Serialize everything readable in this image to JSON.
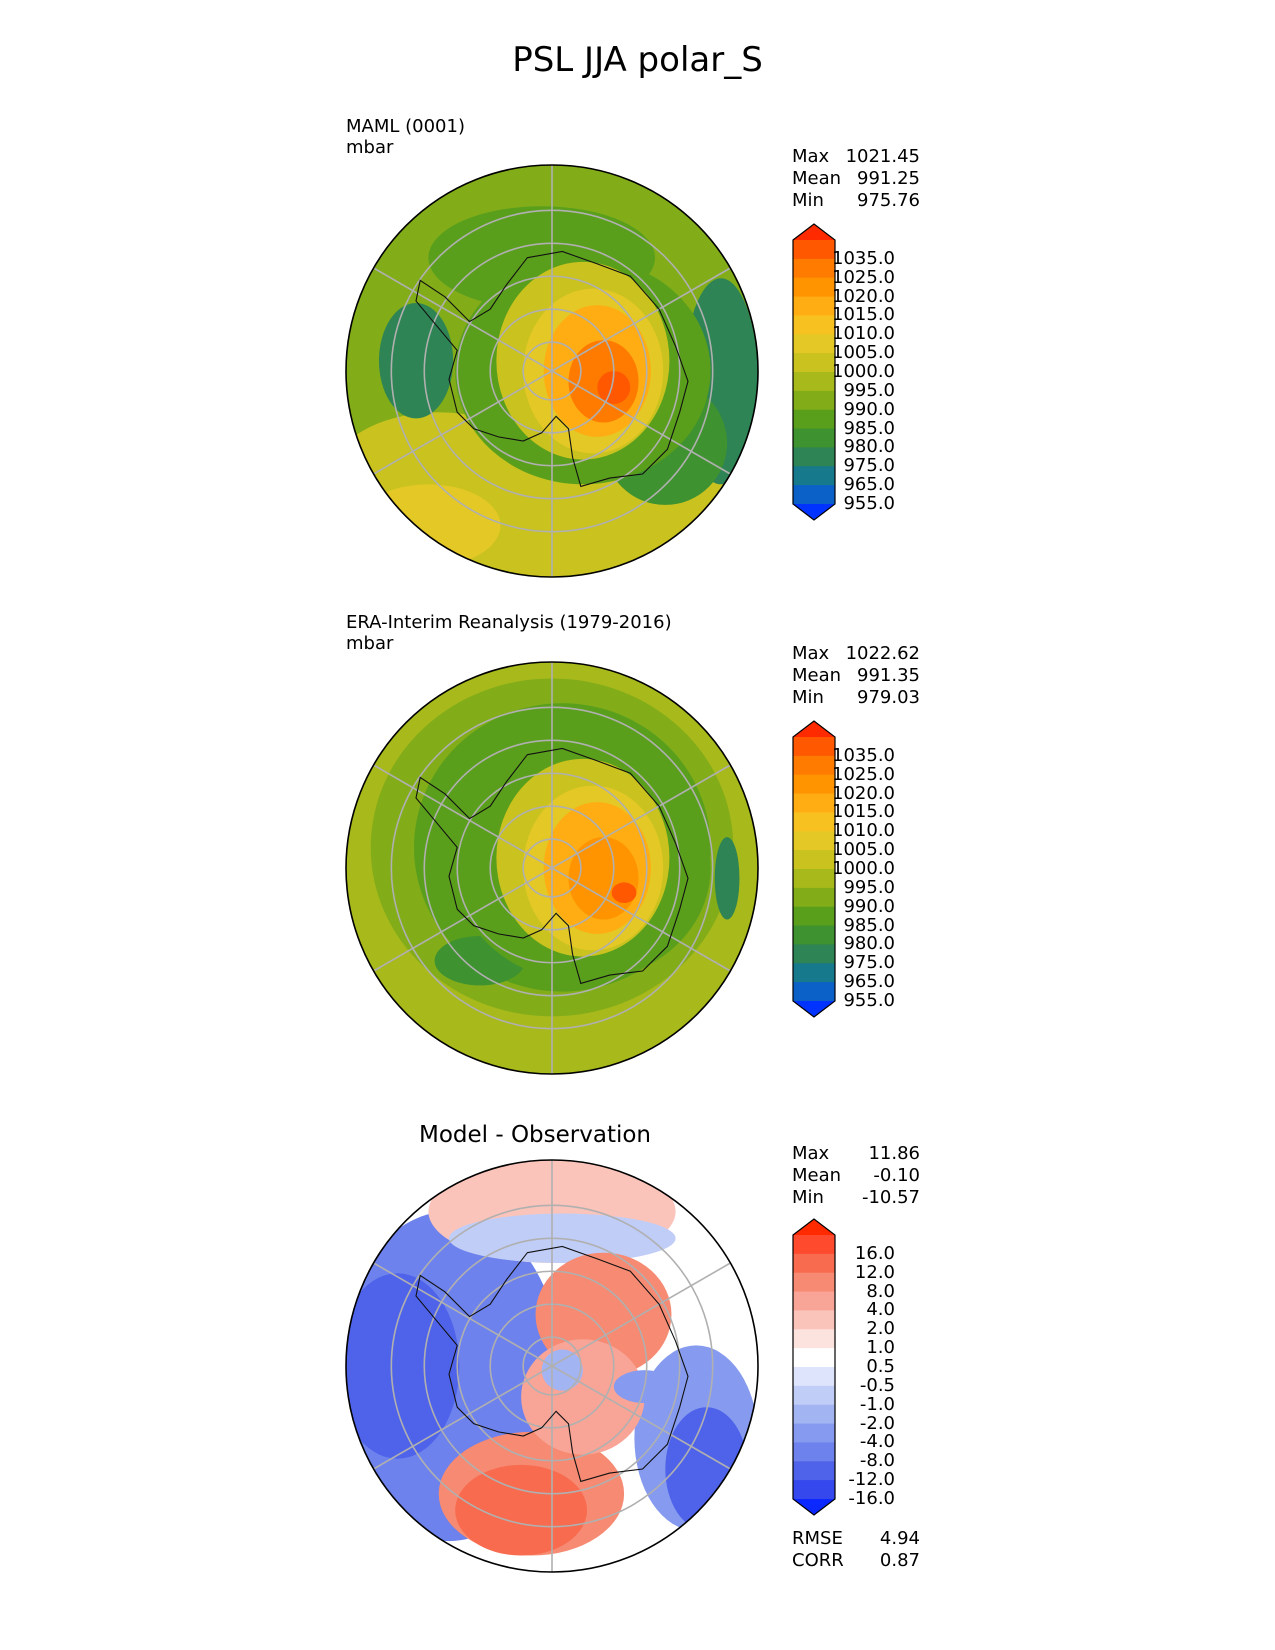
{
  "figure": {
    "title": "PSL JJA polar_S"
  },
  "chart_data": [
    {
      "type": "heatmap",
      "projection": "south polar stereographic",
      "title": "MAML (0001)",
      "units": "mbar",
      "stats": [
        [
          "Max",
          "1021.45"
        ],
        [
          "Mean",
          "991.25"
        ],
        [
          "Min",
          "975.76"
        ]
      ],
      "levels": [
        "1035.0",
        "1025.0",
        "1020.0",
        "1015.0",
        "1010.0",
        "1005.0",
        "1000.0",
        "995.0",
        "990.0",
        "985.0",
        "980.0",
        "975.0",
        "965.0",
        "955.0"
      ],
      "colors": [
        "#ff2a00",
        "#ff5800",
        "#ff7b00",
        "#ff9400",
        "#ffad12",
        "#f7c11f",
        "#e3c826",
        "#c9c21f",
        "#a8b91b",
        "#82ad19",
        "#5a9f1c",
        "#3f9230",
        "#2e8454",
        "#167a8c",
        "#0c61c8",
        "#0033ff"
      ]
    },
    {
      "type": "heatmap",
      "projection": "south polar stereographic",
      "title": "ERA-Interim Reanalysis (1979-2016)",
      "units": "mbar",
      "stats": [
        [
          "Max",
          "1022.62"
        ],
        [
          "Mean",
          "991.35"
        ],
        [
          "Min",
          "979.03"
        ]
      ],
      "levels": [
        "1035.0",
        "1025.0",
        "1020.0",
        "1015.0",
        "1010.0",
        "1005.0",
        "1000.0",
        "995.0",
        "990.0",
        "985.0",
        "980.0",
        "975.0",
        "965.0",
        "955.0"
      ],
      "colors": [
        "#ff2a00",
        "#ff5800",
        "#ff7b00",
        "#ff9400",
        "#ffad12",
        "#f7c11f",
        "#e3c826",
        "#c9c21f",
        "#a8b91b",
        "#82ad19",
        "#5a9f1c",
        "#3f9230",
        "#2e8454",
        "#167a8c",
        "#0c61c8",
        "#0033ff"
      ]
    },
    {
      "type": "heatmap",
      "projection": "south polar stereographic",
      "title": "Model - Observation",
      "stats": [
        [
          "Max",
          "11.86"
        ],
        [
          "Mean",
          "-0.10"
        ],
        [
          "Min",
          "-10.57"
        ]
      ],
      "levels": [
        "16.0",
        "12.0",
        "8.0",
        "4.0",
        "2.0",
        "1.0",
        "0.5",
        "-0.5",
        "-1.0",
        "-2.0",
        "-4.0",
        "-8.0",
        "-12.0",
        "-16.0"
      ],
      "colors": [
        "#ff2a00",
        "#ff4a2e",
        "#f86b4f",
        "#f68a72",
        "#f8a597",
        "#fbc4ba",
        "#fde3dd",
        "#ffffff",
        "#dde4fb",
        "#c0cdf7",
        "#a3b4f3",
        "#869bef",
        "#6d82ec",
        "#4f63ea",
        "#3448ee",
        "#0a28ff"
      ],
      "metrics": [
        [
          "RMSE",
          "4.94"
        ],
        [
          "CORR",
          "0.87"
        ]
      ]
    }
  ]
}
